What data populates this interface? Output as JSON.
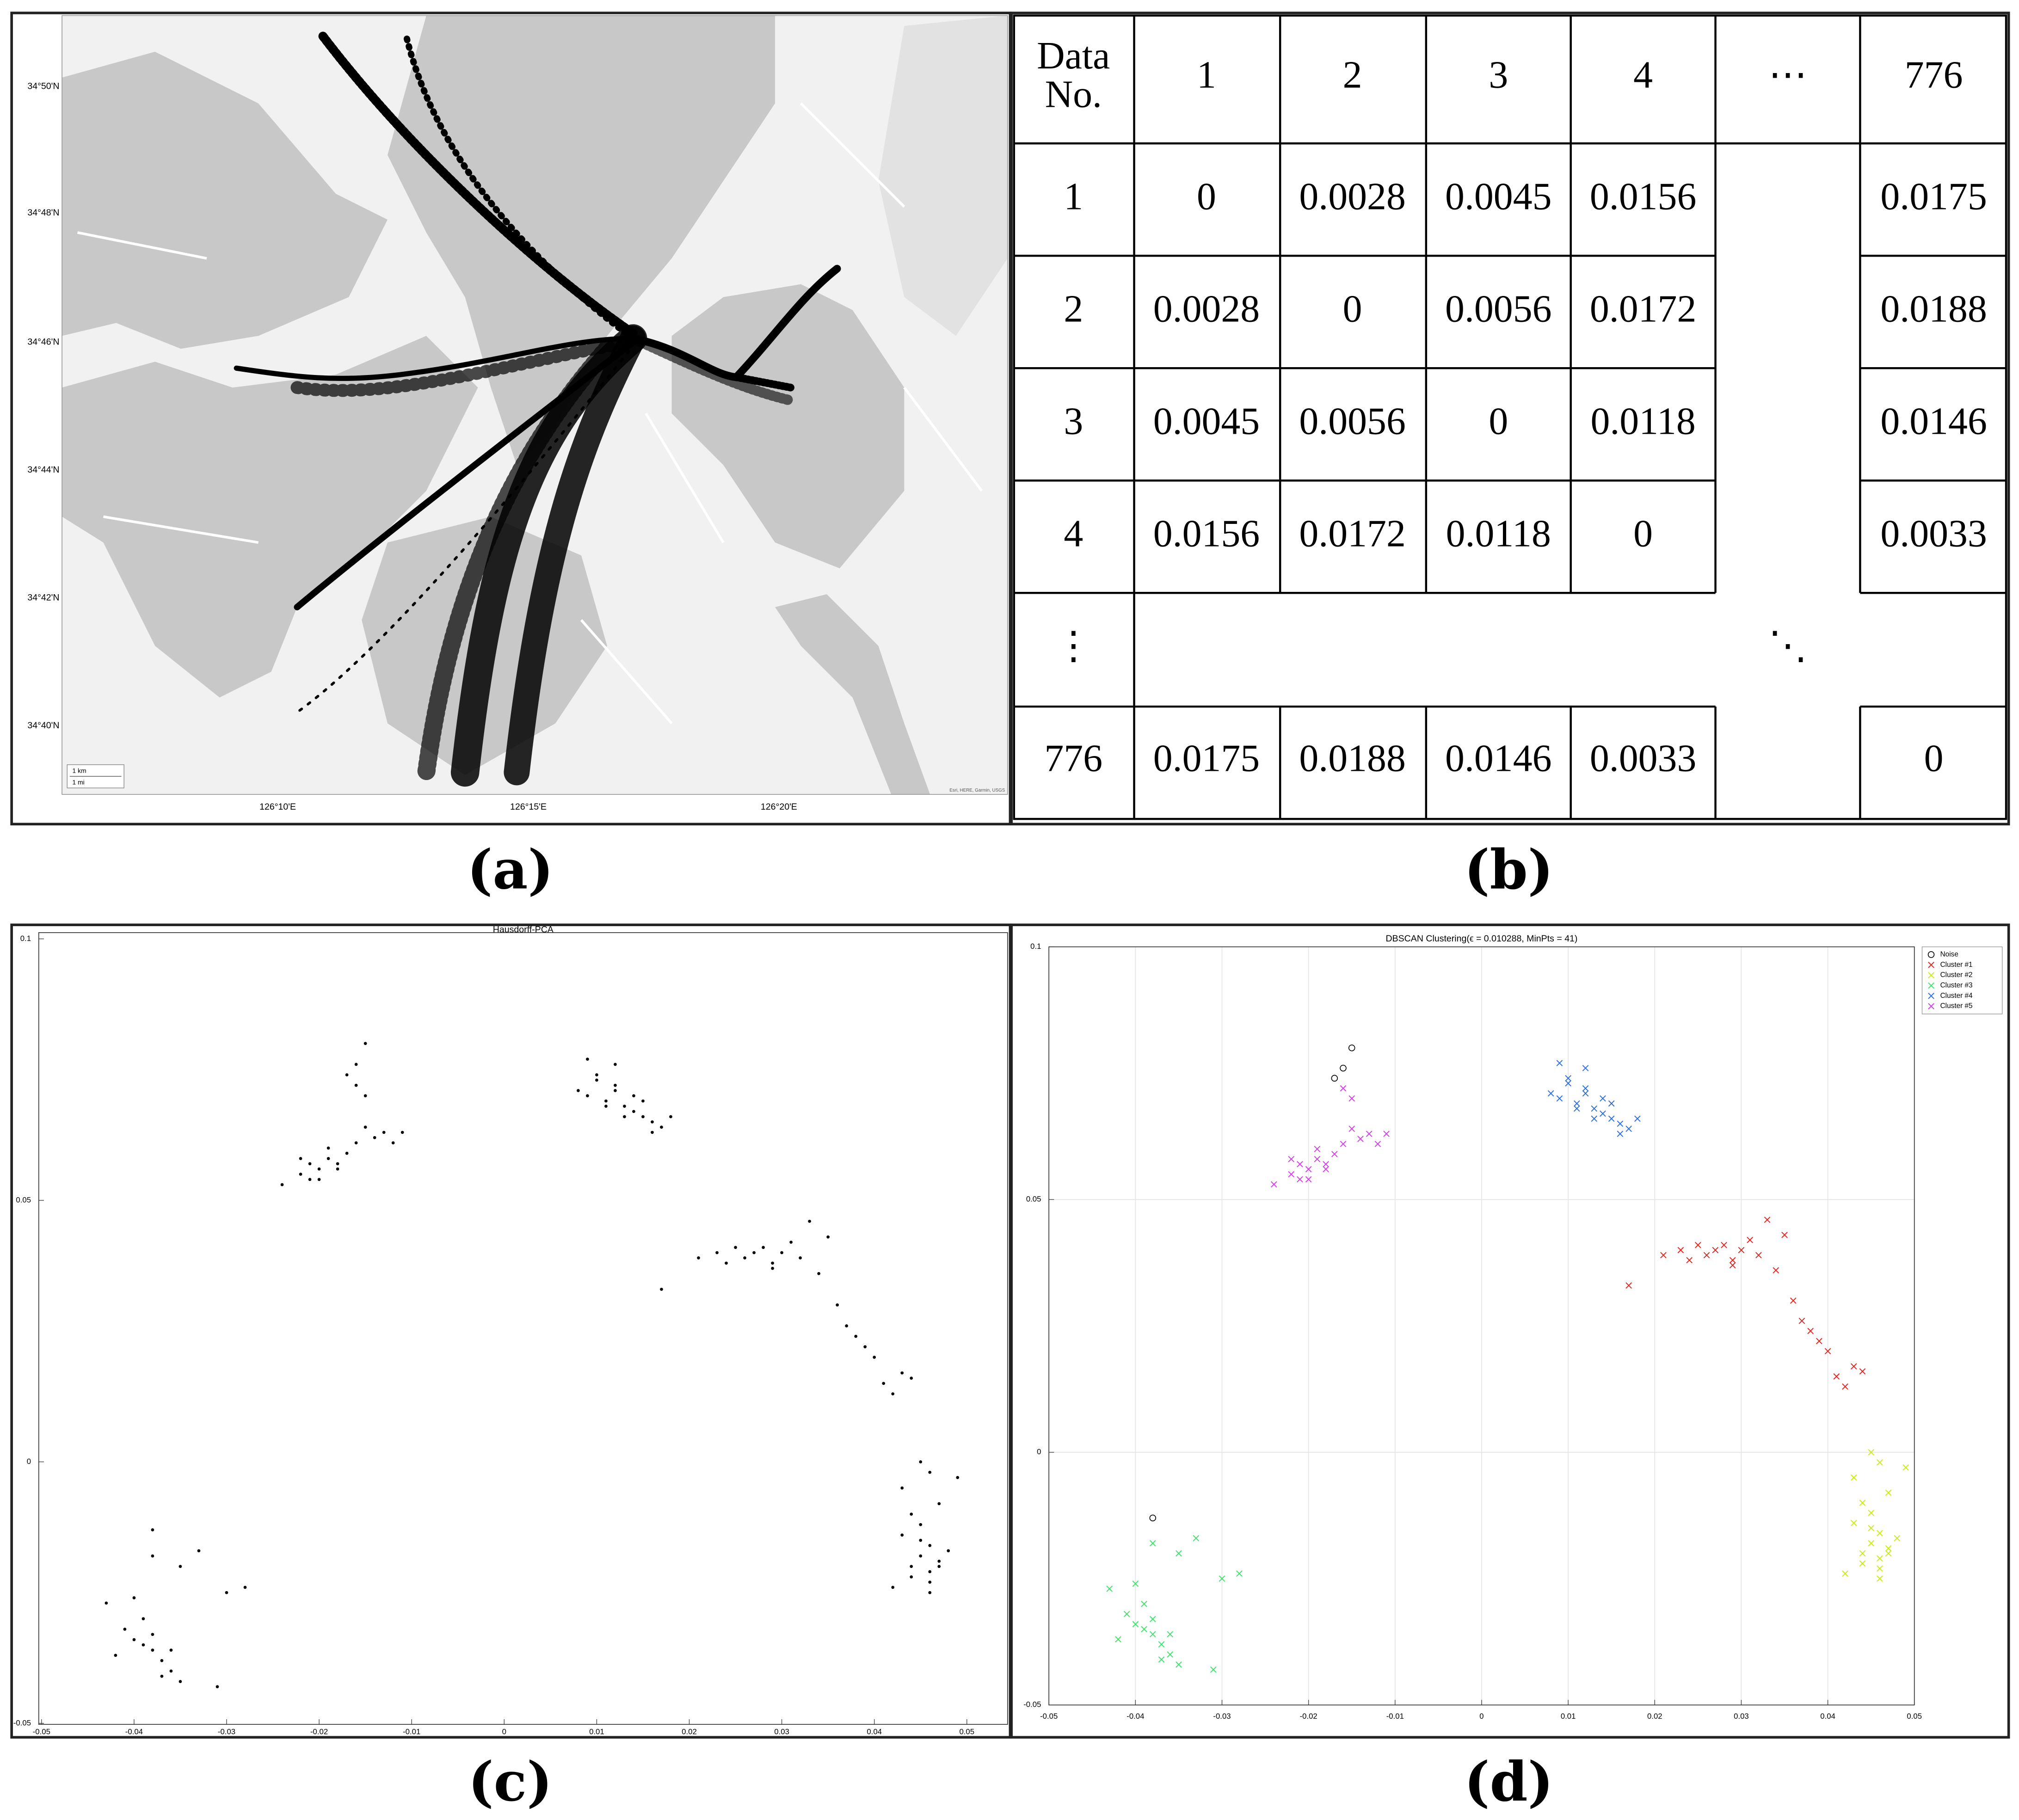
{
  "map": {
    "lat_labels": [
      "34°50'N",
      "34°48'N",
      "34°46'N",
      "34°44'N",
      "34°42'N",
      "34°40'N"
    ],
    "lon_labels": [
      "126°10'E",
      "126°15'E",
      "126°20'E"
    ],
    "scale": [
      "1 km",
      "1 mi"
    ],
    "attribution": "Esri, HERE, Garmin, USGS"
  },
  "table": {
    "header": [
      [
        "Data",
        "No."
      ],
      1,
      2,
      3,
      4,
      "⋯",
      776
    ],
    "rows": [
      [
        1,
        0,
        0.0028,
        0.0045,
        0.0156,
        0.0175
      ],
      [
        2,
        0.0028,
        0,
        0.0056,
        0.0172,
        0.0188
      ],
      [
        3,
        0.0045,
        0.0056,
        0,
        0.0118,
        0.0146
      ],
      [
        4,
        0.0156,
        0.0172,
        0.0118,
        0,
        0.0033
      ],
      [
        "⋮",
        "⋱"
      ],
      [
        776,
        0.0175,
        0.0188,
        0.0146,
        0.0033,
        0
      ]
    ]
  },
  "captions": [
    "(a)",
    "(b)",
    "(c)",
    "(d)"
  ],
  "chart_data": [
    {
      "type": "scatter",
      "title": "Hausdorff-PCA",
      "xlim": [
        -0.0503,
        0.0544
      ],
      "ylim": [
        -0.0502,
        0.1012
      ],
      "xticks": [
        -0.05,
        -0.04,
        -0.03,
        -0.02,
        -0.01,
        0,
        0.01,
        0.02,
        0.03,
        0.04,
        0.05
      ],
      "yticks": [
        -0.05,
        0,
        0.05,
        0.1
      ],
      "grid": false,
      "series": [
        {
          "color": "#000000",
          "marker": "dot",
          "x": [
            0.021,
            0.023,
            0.025,
            0.026,
            0.027,
            0.028,
            0.029,
            0.03,
            0.031,
            0.032,
            0.033,
            0.034,
            0.036,
            0.037,
            0.038,
            0.039,
            0.04,
            0.041,
            0.042,
            0.043,
            0.044,
            0.017,
            0.035,
            0.029,
            0.024
          ],
          "values": [
            0.039,
            0.04,
            0.041,
            0.039,
            0.04,
            0.041,
            0.038,
            0.04,
            0.042,
            0.039,
            0.046,
            0.036,
            0.03,
            0.026,
            0.024,
            0.022,
            0.02,
            0.015,
            0.013,
            0.017,
            0.016,
            0.033,
            0.043,
            0.037,
            0.038
          ]
        },
        {
          "color": "#000000",
          "marker": "dot",
          "x": [
            0.044,
            0.045,
            0.046,
            0.047,
            0.045,
            0.046,
            0.044,
            0.048,
            0.043,
            0.046,
            0.045,
            0.047,
            0.044,
            0.046,
            0.042,
            0.049,
            0.045,
            0.047,
            0.043,
            0.046
          ],
          "values": [
            -0.02,
            -0.018,
            -0.021,
            -0.019,
            -0.015,
            -0.023,
            -0.01,
            -0.017,
            -0.005,
            -0.002,
            -0.012,
            -0.008,
            -0.022,
            -0.016,
            -0.024,
            -0.003,
            0.0,
            -0.02,
            -0.014,
            -0.025
          ]
        },
        {
          "color": "#000000",
          "marker": "dot",
          "x": [
            -0.04,
            -0.038,
            -0.037,
            -0.039,
            -0.036,
            -0.041,
            -0.038,
            -0.035,
            -0.043,
            -0.037,
            -0.039,
            -0.036,
            -0.033,
            -0.03,
            -0.028,
            -0.038,
            -0.04,
            -0.042,
            -0.035,
            -0.031
          ],
          "values": [
            -0.034,
            -0.036,
            -0.038,
            -0.035,
            -0.04,
            -0.032,
            -0.033,
            -0.042,
            -0.027,
            -0.041,
            -0.03,
            -0.036,
            -0.017,
            -0.025,
            -0.024,
            -0.018,
            -0.026,
            -0.037,
            -0.02,
            -0.043
          ]
        },
        {
          "color": "#000000",
          "marker": "dot",
          "x": [
            0.008,
            0.009,
            0.01,
            0.011,
            0.012,
            0.013,
            0.014,
            0.015,
            0.016,
            0.017,
            0.01,
            0.012,
            0.014,
            0.011,
            0.013,
            0.016,
            0.009,
            0.018,
            0.015,
            0.012
          ],
          "values": [
            0.071,
            0.07,
            0.073,
            0.069,
            0.072,
            0.068,
            0.067,
            0.066,
            0.065,
            0.064,
            0.074,
            0.076,
            0.07,
            0.068,
            0.066,
            0.063,
            0.077,
            0.066,
            0.069,
            0.071
          ]
        },
        {
          "color": "#000000",
          "marker": "dot",
          "x": [
            -0.024,
            -0.022,
            -0.021,
            -0.02,
            -0.019,
            -0.018,
            -0.017,
            -0.016,
            -0.02,
            -0.022,
            -0.015,
            -0.014,
            -0.013,
            -0.012,
            -0.011,
            -0.015,
            -0.019,
            -0.021,
            -0.016,
            -0.018
          ],
          "values": [
            0.053,
            0.055,
            0.057,
            0.056,
            0.058,
            0.057,
            0.059,
            0.061,
            0.054,
            0.058,
            0.064,
            0.062,
            0.063,
            0.061,
            0.063,
            0.07,
            0.06,
            0.054,
            0.072,
            0.056
          ]
        },
        {
          "color": "#000000",
          "marker": "dot",
          "x": [
            -0.015,
            -0.016,
            -0.017,
            -0.038
          ],
          "values": [
            0.08,
            0.076,
            0.074,
            -0.013
          ]
        }
      ]
    },
    {
      "type": "scatter",
      "title": "DBSCAN Clustering(ϵ = 0.010288, MinPts = 41)",
      "xlim": [
        -0.05,
        0.05
      ],
      "ylim": [
        -0.05,
        0.1
      ],
      "xticks": [
        -0.05,
        -0.04,
        -0.03,
        -0.02,
        -0.01,
        0,
        0.01,
        0.02,
        0.03,
        0.04,
        0.05
      ],
      "yticks": [
        -0.05,
        0,
        0.05,
        0.1
      ],
      "grid": true,
      "legend": "upper right",
      "series": [
        {
          "name": "Noise",
          "color": "#000000",
          "marker": "o",
          "x": [
            -0.015,
            -0.016,
            -0.017,
            -0.038
          ],
          "values": [
            0.08,
            0.076,
            0.074,
            -0.013
          ]
        },
        {
          "name": "Cluster #1",
          "color": "#e8231e",
          "marker": "x",
          "x": [
            0.021,
            0.023,
            0.025,
            0.026,
            0.027,
            0.028,
            0.029,
            0.03,
            0.031,
            0.032,
            0.033,
            0.034,
            0.036,
            0.037,
            0.038,
            0.039,
            0.04,
            0.041,
            0.042,
            0.043,
            0.044,
            0.017,
            0.035,
            0.029,
            0.024
          ],
          "values": [
            0.039,
            0.04,
            0.041,
            0.039,
            0.04,
            0.041,
            0.038,
            0.04,
            0.042,
            0.039,
            0.046,
            0.036,
            0.03,
            0.026,
            0.024,
            0.022,
            0.02,
            0.015,
            0.013,
            0.017,
            0.016,
            0.033,
            0.043,
            0.037,
            0.038
          ]
        },
        {
          "name": "Cluster #2",
          "color": "#c6ee0e",
          "marker": "x",
          "x": [
            0.044,
            0.045,
            0.046,
            0.047,
            0.045,
            0.046,
            0.044,
            0.048,
            0.043,
            0.046,
            0.045,
            0.047,
            0.044,
            0.046,
            0.042,
            0.049,
            0.045,
            0.047,
            0.043,
            0.046
          ],
          "values": [
            -0.02,
            -0.018,
            -0.021,
            -0.019,
            -0.015,
            -0.023,
            -0.01,
            -0.017,
            -0.005,
            -0.002,
            -0.012,
            -0.008,
            -0.022,
            -0.016,
            -0.024,
            -0.003,
            0.0,
            -0.02,
            -0.014,
            -0.025
          ]
        },
        {
          "name": "Cluster #3",
          "color": "#3ee36a",
          "marker": "x",
          "x": [
            -0.04,
            -0.038,
            -0.037,
            -0.039,
            -0.036,
            -0.041,
            -0.038,
            -0.035,
            -0.043,
            -0.037,
            -0.039,
            -0.036,
            -0.033,
            -0.03,
            -0.028,
            -0.038,
            -0.04,
            -0.042,
            -0.035,
            -0.031
          ],
          "values": [
            -0.034,
            -0.036,
            -0.038,
            -0.035,
            -0.04,
            -0.032,
            -0.033,
            -0.042,
            -0.027,
            -0.041,
            -0.03,
            -0.036,
            -0.017,
            -0.025,
            -0.024,
            -0.018,
            -0.026,
            -0.037,
            -0.02,
            -0.043
          ]
        },
        {
          "name": "Cluster #4",
          "color": "#2f6fe0",
          "marker": "x",
          "x": [
            0.008,
            0.009,
            0.01,
            0.011,
            0.012,
            0.013,
            0.014,
            0.015,
            0.016,
            0.017,
            0.01,
            0.012,
            0.014,
            0.011,
            0.013,
            0.016,
            0.009,
            0.018,
            0.015,
            0.012
          ],
          "values": [
            0.071,
            0.07,
            0.073,
            0.069,
            0.072,
            0.068,
            0.067,
            0.066,
            0.065,
            0.064,
            0.074,
            0.076,
            0.07,
            0.068,
            0.066,
            0.063,
            0.077,
            0.066,
            0.069,
            0.071
          ]
        },
        {
          "name": "Cluster #5",
          "color": "#d43fe8",
          "marker": "x",
          "x": [
            -0.024,
            -0.022,
            -0.021,
            -0.02,
            -0.019,
            -0.018,
            -0.017,
            -0.016,
            -0.02,
            -0.022,
            -0.015,
            -0.014,
            -0.013,
            -0.012,
            -0.011,
            -0.015,
            -0.019,
            -0.021,
            -0.016,
            -0.018
          ],
          "values": [
            0.053,
            0.055,
            0.057,
            0.056,
            0.058,
            0.057,
            0.059,
            0.061,
            0.054,
            0.058,
            0.064,
            0.062,
            0.063,
            0.061,
            0.063,
            0.07,
            0.06,
            0.054,
            0.072,
            0.056
          ]
        }
      ]
    }
  ]
}
